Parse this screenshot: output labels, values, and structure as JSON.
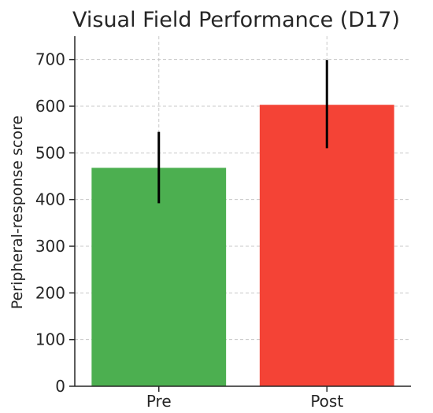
{
  "chart_data": {
    "type": "bar",
    "title": "Visual Field Performance (D17)",
    "xlabel": "",
    "ylabel": "Peripheral-response score",
    "categories": [
      "Pre",
      "Post"
    ],
    "values": [
      468,
      603
    ],
    "error_bars": [
      {
        "low": 392,
        "high": 545
      },
      {
        "low": 510,
        "high": 699
      }
    ],
    "colors": [
      "#4caf50",
      "#f44336"
    ],
    "ylim": [
      0,
      750
    ],
    "yticks": [
      0,
      100,
      200,
      300,
      400,
      500,
      600,
      700
    ],
    "grid": true
  }
}
